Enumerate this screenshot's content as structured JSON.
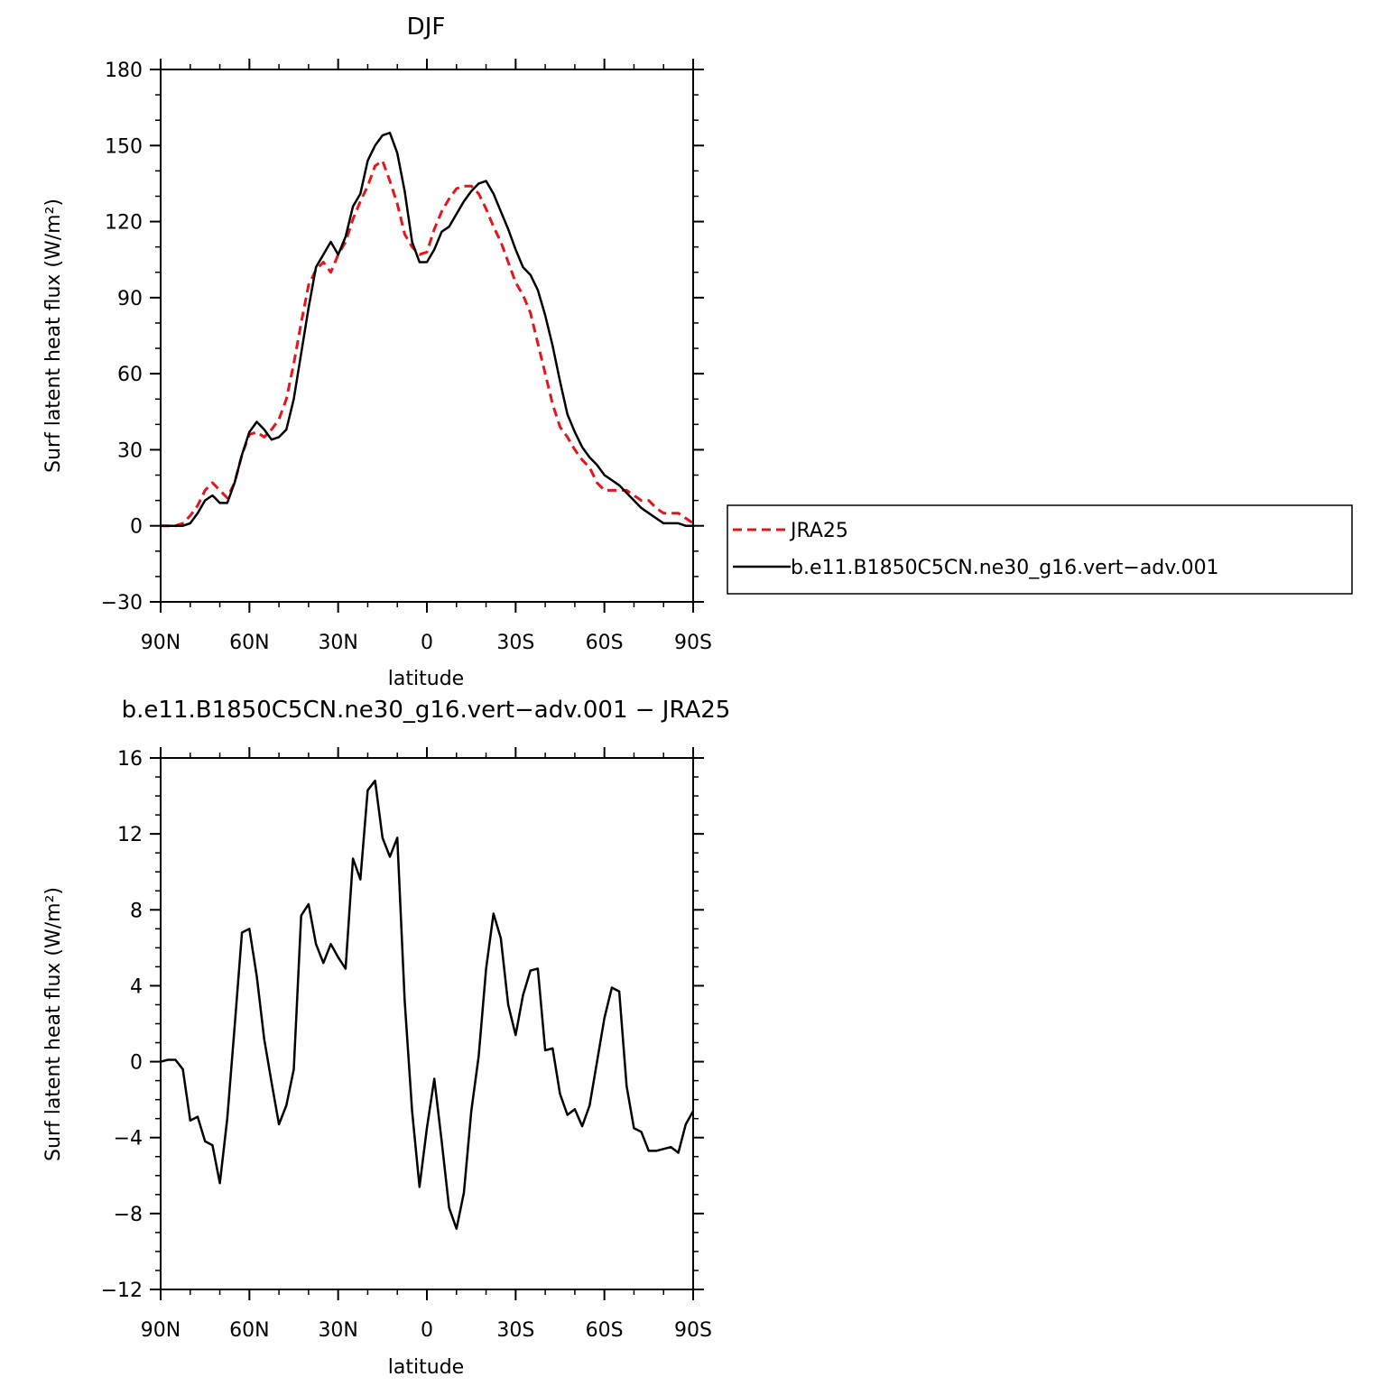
{
  "chart_data": [
    {
      "type": "line",
      "title": "DJF",
      "xlabel": "latitude",
      "ylabel": "Surf latent heat flux (W/m²)",
      "ylim": [
        -30,
        180
      ],
      "yticks": [
        -30,
        0,
        30,
        60,
        90,
        120,
        150,
        180
      ],
      "yticklabels": [
        "−30",
        "0",
        "30",
        "60",
        "90",
        "120",
        "150",
        "180"
      ],
      "xlim": [
        90,
        -90
      ],
      "xticks": [
        90,
        60,
        30,
        0,
        -30,
        -60,
        -90
      ],
      "xticklabels": [
        "90N",
        "60N",
        "30N",
        "0",
        "30S",
        "60S",
        "90S"
      ],
      "legend": "outside-right",
      "series": [
        {
          "name": "JRA25",
          "color": "#e8141b",
          "dash": "dashed",
          "x": [
            90,
            87.5,
            85,
            82.5,
            80,
            77.5,
            75,
            72.5,
            70,
            67.5,
            65,
            62.5,
            60,
            57.5,
            55,
            52.5,
            50,
            47.5,
            45,
            42.5,
            40,
            37.5,
            35,
            32.5,
            30,
            27.5,
            25,
            22.5,
            20,
            17.5,
            15,
            12.5,
            10,
            7.5,
            5,
            2.5,
            0,
            -2.5,
            -5,
            -7.5,
            -10,
            -12.5,
            -15,
            -17.5,
            -20,
            -22.5,
            -25,
            -27.5,
            -30,
            -32.5,
            -35,
            -37.5,
            -40,
            -42.5,
            -45,
            -47.5,
            -50,
            -52.5,
            -55,
            -57.5,
            -60,
            -62.5,
            -65,
            -67.5,
            -70,
            -72.5,
            -75,
            -77.5,
            -80,
            -82.5,
            -85,
            -87.5,
            -90
          ],
          "values": [
            0,
            0,
            0,
            1,
            4,
            8,
            14,
            17,
            14,
            11,
            17,
            28,
            36,
            37,
            35,
            38,
            42,
            50,
            64,
            80,
            95,
            101,
            104,
            100,
            107,
            112,
            121,
            128,
            134,
            142,
            144,
            136,
            127,
            115,
            110,
            107,
            108,
            117,
            124,
            129,
            133,
            134,
            134,
            131,
            125,
            118,
            112,
            104,
            96,
            91,
            84,
            72,
            60,
            48,
            39,
            35,
            30,
            26,
            23,
            17,
            14,
            14,
            14,
            14,
            12,
            10,
            10,
            7,
            5,
            5,
            5,
            3,
            1
          ]
        },
        {
          "name": "b.e11.B1850C5CN.ne30_g16.vert−adv.001",
          "color": "#000000",
          "dash": "solid",
          "x": [
            90,
            87.5,
            85,
            82.5,
            80,
            77.5,
            75,
            72.5,
            70,
            67.5,
            65,
            62.5,
            60,
            57.5,
            55,
            52.5,
            50,
            47.5,
            45,
            42.5,
            40,
            37.5,
            35,
            32.5,
            30,
            27.5,
            25,
            22.5,
            20,
            17.5,
            15,
            12.5,
            10,
            7.5,
            5,
            2.5,
            0,
            -2.5,
            -5,
            -7.5,
            -10,
            -12.5,
            -15,
            -17.5,
            -20,
            -22.5,
            -25,
            -27.5,
            -30,
            -32.5,
            -35,
            -37.5,
            -40,
            -42.5,
            -45,
            -47.5,
            -50,
            -52.5,
            -55,
            -57.5,
            -60,
            -62.5,
            -65,
            -67.5,
            -70,
            -72.5,
            -75,
            -77.5,
            -80,
            -82.5,
            -85,
            -87.5,
            -90
          ],
          "values": [
            0,
            0,
            0,
            0,
            1,
            5,
            10,
            12,
            9,
            9,
            17,
            28,
            37,
            41,
            38,
            34,
            35,
            38,
            50,
            68,
            86,
            102,
            107,
            112,
            107,
            114,
            126,
            131,
            144,
            150,
            154,
            155,
            147,
            132,
            112,
            104,
            104,
            109,
            116,
            118,
            123,
            128,
            132,
            135,
            136,
            131,
            124,
            117,
            109,
            102,
            99,
            93,
            83,
            71,
            57,
            44,
            37,
            31,
            27,
            24,
            20,
            18,
            16,
            13,
            10,
            7,
            5,
            3,
            1,
            1,
            1,
            0,
            0
          ]
        }
      ]
    },
    {
      "type": "line",
      "title": "b.e11.B1850C5CN.ne30_g16.vert−adv.001  −  JRA25",
      "xlabel": "latitude",
      "ylabel": "Surf latent heat flux (W/m²)",
      "ylim": [
        -12,
        16
      ],
      "yticks": [
        -12,
        -8,
        -4,
        0,
        4,
        8,
        12,
        16
      ],
      "yticklabels": [
        "−12",
        "−8",
        "−4",
        "0",
        "4",
        "8",
        "12",
        "16"
      ],
      "xlim": [
        90,
        -90
      ],
      "xticks": [
        90,
        60,
        30,
        0,
        -30,
        -60,
        -90
      ],
      "xticklabels": [
        "90N",
        "60N",
        "30N",
        "0",
        "30S",
        "60S",
        "90S"
      ],
      "series": [
        {
          "color": "#000000",
          "dash": "solid",
          "x": [
            90,
            87.5,
            85,
            82.5,
            80,
            77.5,
            75,
            72.5,
            70,
            67.5,
            65,
            62.5,
            60,
            57.5,
            55,
            52.5,
            50,
            47.5,
            45,
            42.5,
            40,
            37.5,
            35,
            32.5,
            30,
            27.5,
            25,
            22.5,
            20,
            17.5,
            15,
            12.5,
            10,
            7.5,
            5,
            2.5,
            0,
            -2.5,
            -5,
            -7.5,
            -10,
            -12.5,
            -15,
            -17.5,
            -20,
            -22.5,
            -25,
            -27.5,
            -30,
            -32.5,
            -35,
            -37.5,
            -40,
            -42.5,
            -45,
            -47.5,
            -50,
            -52.5,
            -55,
            -57.5,
            -60,
            -62.5,
            -65,
            -67.5,
            -70,
            -72.5,
            -75,
            -77.5,
            -80,
            -82.5,
            -85,
            -87.5,
            -90
          ],
          "values": [
            0,
            0.1,
            0.1,
            -0.4,
            -3.1,
            -2.9,
            -4.2,
            -4.4,
            -6.4,
            -3.0,
            1.8,
            6.8,
            7.0,
            4.5,
            1.2,
            -1.1,
            -3.3,
            -2.3,
            -0.4,
            7.7,
            8.3,
            6.2,
            5.2,
            6.2,
            5.5,
            4.9,
            10.7,
            9.6,
            14.3,
            14.8,
            11.8,
            10.8,
            11.8,
            3.2,
            -2.6,
            -6.6,
            -3.5,
            -0.9,
            -4.2,
            -7.7,
            -8.8,
            -6.9,
            -2.6,
            0.3,
            4.9,
            7.8,
            6.5,
            3.0,
            1.4,
            3.5,
            4.8,
            4.9,
            0.6,
            0.7,
            -1.7,
            -2.8,
            -2.5,
            -3.4,
            -2.3,
            0.0,
            2.3,
            3.9,
            3.7,
            -1.3,
            -3.5,
            -3.7,
            -4.7,
            -4.7,
            -4.6,
            -4.5,
            -4.8,
            -3.3,
            -2.6
          ]
        }
      ]
    }
  ]
}
